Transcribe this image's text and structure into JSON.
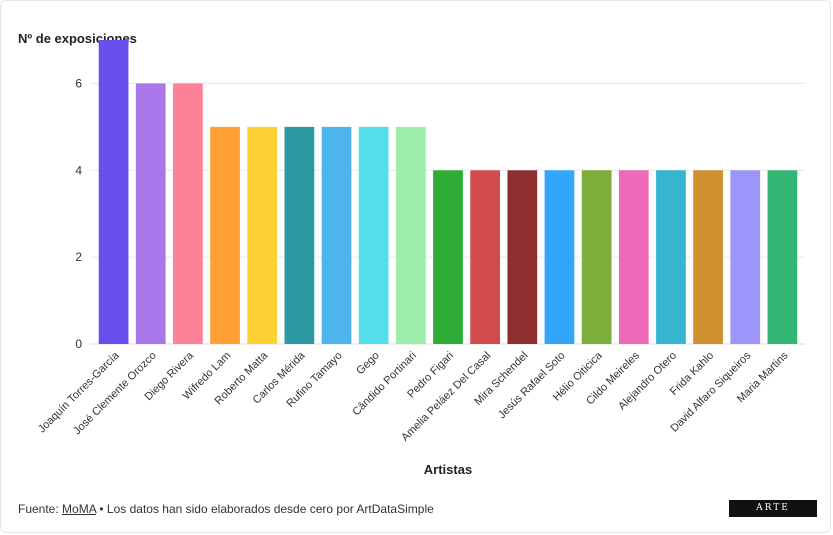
{
  "chart_data": {
    "type": "bar",
    "title": "",
    "ylabel": "Nº de exposiciones",
    "xlabel": "Artistas",
    "ylim": [
      0,
      7
    ],
    "yticks": [
      0,
      2,
      4,
      6
    ],
    "grid": true,
    "categories": [
      "Joaquín Torres-García",
      "José Clemente Orozco",
      "Diego Rivera",
      "Wifredo Lam",
      "Roberto Matta",
      "Carlos Mérida",
      "Rufino Tamayo",
      "Gego",
      "Cândido Portinari",
      "Pedro Figari",
      "Amelia Peláez Del Casal",
      "Mira Schendel",
      "Jesús Rafael Soto",
      "Hélio Oiticica",
      "Cildo Meireles",
      "Alejandro Otero",
      "Frida Kahlo",
      "David Alfaro Siqueiros",
      "Maria Martins"
    ],
    "values": [
      7,
      6,
      6,
      5,
      5,
      5,
      5,
      5,
      5,
      4,
      4,
      4,
      4,
      4,
      4,
      4,
      4,
      4,
      4
    ],
    "colors": [
      "#6a4fec",
      "#a977ea",
      "#fd8199",
      "#ff9f36",
      "#fdd033",
      "#2b9aa3",
      "#4db4ec",
      "#53dfea",
      "#9fedab",
      "#2fae37",
      "#d14b4d",
      "#8d2f2f",
      "#33a6fc",
      "#7dad3b",
      "#ec6ab7",
      "#36b5cf",
      "#cf9130",
      "#9d95fa",
      "#33b574"
    ]
  },
  "footer": {
    "prefix": "Fuente: ",
    "link": "MoMA",
    "suffix": " • Los datos han sido elaborados desde cero por ArtDataSimple"
  },
  "logo": {
    "text": "ARTE"
  }
}
